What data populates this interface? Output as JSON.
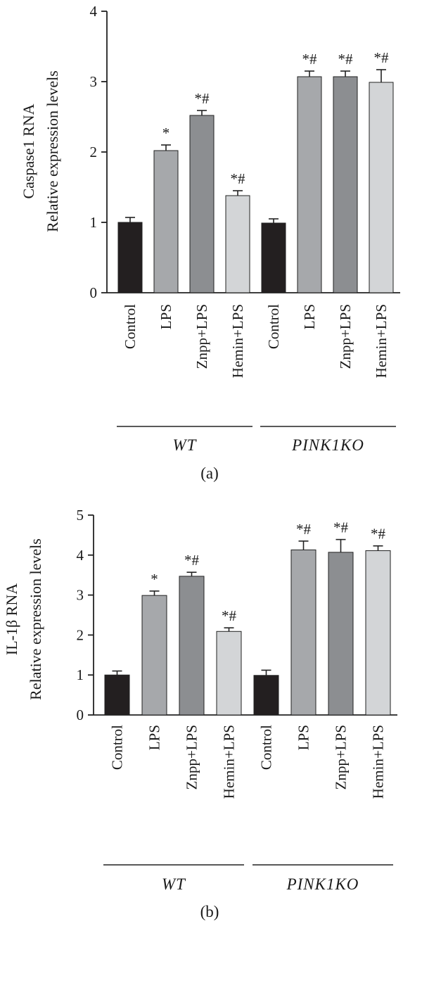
{
  "chart_data": [
    {
      "type": "bar",
      "panel_label": "(a)",
      "ylabel_line1": "Caspase1 RNA",
      "ylabel_line2": "Relative expression levels",
      "ylim": [
        0,
        4
      ],
      "yticks": [
        0,
        1,
        2,
        3,
        4
      ],
      "categories": [
        "Control",
        "LPS",
        "Znpp+LPS",
        "Hemin+LPS",
        "Control",
        "LPS",
        "Znpp+LPS",
        "Hemin+LPS"
      ],
      "values": [
        1.0,
        2.02,
        2.52,
        1.38,
        0.99,
        3.07,
        3.07,
        2.99
      ],
      "errors": [
        0.07,
        0.08,
        0.07,
        0.07,
        0.06,
        0.08,
        0.08,
        0.18
      ],
      "colors": [
        "#231f20",
        "#a6a8ab",
        "#8c8e91",
        "#d3d5d7",
        "#231f20",
        "#a6a8ab",
        "#8c8e91",
        "#d3d5d7"
      ],
      "significance": [
        "",
        "*",
        "*#",
        "*#",
        "",
        "*#",
        "*#",
        "*#"
      ],
      "groups": [
        {
          "label": "WT",
          "start": 0,
          "end": 3
        },
        {
          "label": "PINK1KO",
          "start": 4,
          "end": 7
        }
      ]
    },
    {
      "type": "bar",
      "panel_label": "(b)",
      "ylabel_line1": "IL-1β RNA",
      "ylabel_line2": "Relative expression levels",
      "ylim": [
        0,
        5
      ],
      "yticks": [
        0,
        1,
        2,
        3,
        4,
        5
      ],
      "categories": [
        "Control",
        "LPS",
        "Znpp+LPS",
        "Hemin+LPS",
        "Control",
        "LPS",
        "Znpp+LPS",
        "Hemin+LPS"
      ],
      "values": [
        1.0,
        2.99,
        3.47,
        2.09,
        0.99,
        4.13,
        4.07,
        4.11
      ],
      "errors": [
        0.1,
        0.11,
        0.1,
        0.09,
        0.13,
        0.22,
        0.32,
        0.12
      ],
      "colors": [
        "#231f20",
        "#a6a8ab",
        "#8c8e91",
        "#d3d5d7",
        "#231f20",
        "#a6a8ab",
        "#8c8e91",
        "#d3d5d7"
      ],
      "significance": [
        "",
        "*",
        "*#",
        "*#",
        "",
        "*#",
        "*#",
        "*#"
      ],
      "groups": [
        {
          "label": "WT",
          "start": 0,
          "end": 3
        },
        {
          "label": "PINK1KO",
          "start": 4,
          "end": 7
        }
      ]
    }
  ]
}
